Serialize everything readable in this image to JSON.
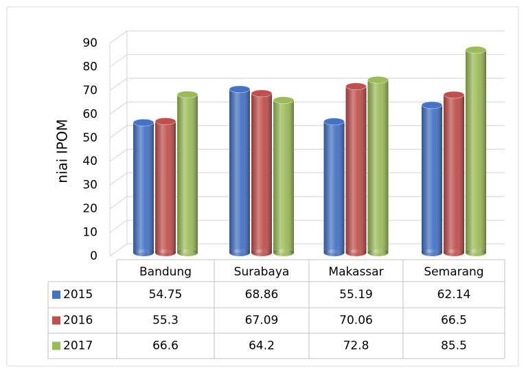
{
  "chart_data": {
    "type": "bar",
    "y_label": "niai IPOM",
    "categories": [
      "Bandung",
      "Surabaya",
      "Makassar",
      "Semarang"
    ],
    "series": [
      {
        "name": "2015",
        "color": "#4472c4",
        "values": [
          54.75,
          68.86,
          55.19,
          62.14
        ]
      },
      {
        "name": "2016",
        "color": "#c0504d",
        "values": [
          55.3,
          67.09,
          70.06,
          66.5
        ]
      },
      {
        "name": "2017",
        "color": "#9bbb59",
        "values": [
          66.6,
          64.2,
          72.8,
          85.5
        ]
      }
    ],
    "ylim": [
      0,
      90
    ],
    "yticks": [
      0,
      10,
      20,
      30,
      40,
      50,
      60,
      70,
      80,
      90
    ],
    "grid": true
  }
}
